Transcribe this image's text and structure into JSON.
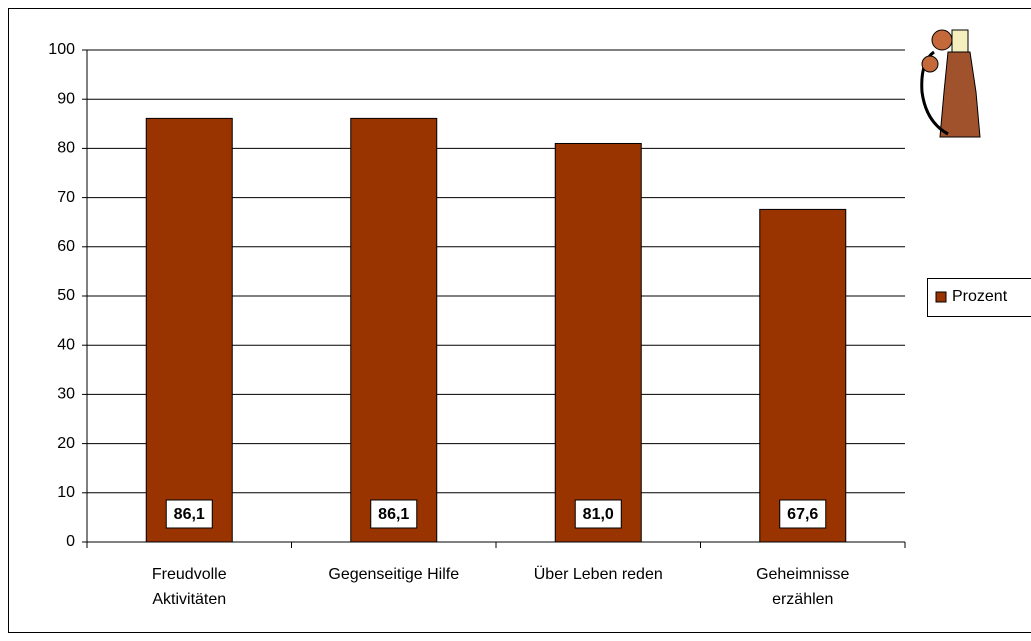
{
  "chart_data": {
    "type": "bar",
    "categories": [
      "Freudvolle\nAktivitäten",
      "Gegenseitige Hilfe",
      "Über Leben reden",
      "Geheimnisse\nerzählen"
    ],
    "series": [
      {
        "name": "Prozent",
        "color": "#993300",
        "values": [
          86.1,
          86.1,
          81.0,
          67.6
        ],
        "value_labels": [
          "86,1",
          "86,1",
          "81,0",
          "67,6"
        ]
      }
    ],
    "ylim": [
      0,
      100
    ],
    "yticks": [
      0,
      10,
      20,
      30,
      40,
      50,
      60,
      70,
      80,
      90,
      100
    ],
    "grid": true,
    "legend": "right"
  }
}
